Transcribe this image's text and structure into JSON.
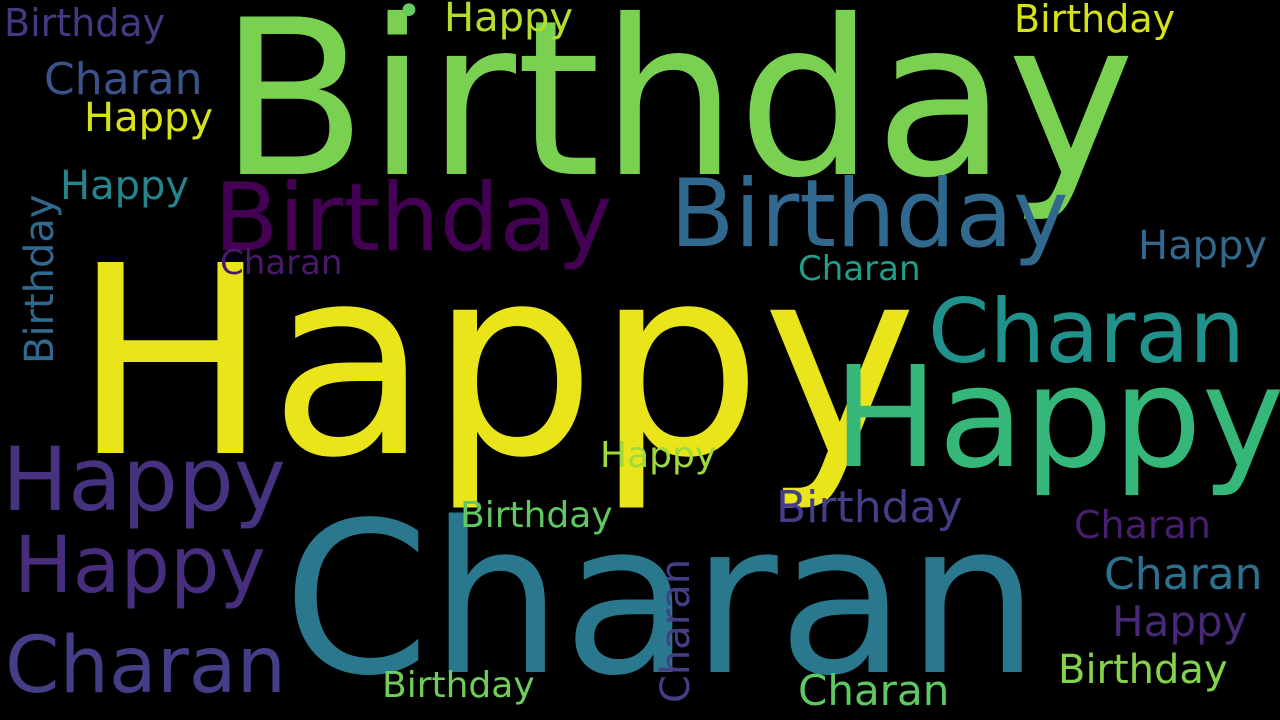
{
  "cloud": {
    "background": "#000000",
    "words": [
      {
        "text": "Birthday",
        "color": "#7ad151"
      },
      {
        "text": "Happy",
        "color": "#eae51a"
      },
      {
        "text": "Charan",
        "color": "#2a788e"
      },
      {
        "text": "Birthday",
        "color": "#440154"
      },
      {
        "text": "Birthday",
        "color": "#31688e"
      },
      {
        "text": "Happy",
        "color": "#35b779"
      },
      {
        "text": "Charan",
        "color": "#21918c"
      },
      {
        "text": "Happy",
        "color": "#46327e"
      },
      {
        "text": "Happy",
        "color": "#472d7b"
      },
      {
        "text": "Charan",
        "color": "#433e85"
      },
      {
        "text": "Birthday",
        "color": "#443983"
      },
      {
        "text": "Birthday",
        "color": "#433e85"
      },
      {
        "text": "Charan",
        "color": "#3b528b"
      },
      {
        "text": "Happy",
        "color": "#b5de2b"
      },
      {
        "text": "Happy",
        "color": "#25858e"
      },
      {
        "text": "Birthday",
        "color": "#d8e219"
      },
      {
        "text": "Happy",
        "color": "#2db27d"
      },
      {
        "text": "Happy",
        "color": "#d8e219"
      },
      {
        "text": "Happy",
        "color": "#2a788e"
      },
      {
        "text": "Happy",
        "color": "#31688e"
      },
      {
        "text": "Charan",
        "color": "#481a6c"
      },
      {
        "text": "Charan",
        "color": "#1f9e89"
      },
      {
        "text": "Birthday",
        "color": "#3e4a89"
      },
      {
        "text": "Happy",
        "color": "#a0da39"
      },
      {
        "text": "Birthday",
        "color": "#5ec962"
      },
      {
        "text": "Charan",
        "color": "#481f70"
      },
      {
        "text": "Charan",
        "color": "#2c728e"
      },
      {
        "text": "Happy",
        "color": "#482878"
      },
      {
        "text": "Birthday",
        "color": "#84d44b"
      },
      {
        "text": "Birthday",
        "color": "#6ece58"
      },
      {
        "text": "Charan",
        "color": "#5ec962"
      },
      {
        "text": "Charan",
        "color": "#433e85"
      },
      {
        "text": "Birthday",
        "color": "#30698e"
      },
      {
        "text": "•",
        "color": "#63cb5f"
      }
    ]
  }
}
